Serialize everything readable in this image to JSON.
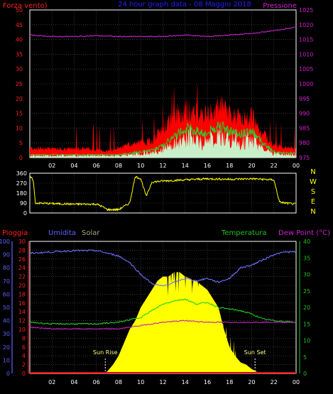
{
  "header": {
    "title": "24 hour graph data - 08 Maggio 2018",
    "left_label": "Forza vento)",
    "right_label": "Pressione"
  },
  "colors": {
    "background": "#000000",
    "grid": "#5a5a5a",
    "wind_gust": "#ff0000",
    "wind_avg": "#2ecc2e",
    "wind_fill": "#c8f0c8",
    "pressure": "#c020c0",
    "direction": "#ffff00",
    "humidity": "#7070ff",
    "temperature": "#22cc22",
    "dew_point": "#c020c0",
    "solar": "#ffff00",
    "rain": "#ff0000",
    "title": "#2020ff",
    "axis_red": "#ff2020",
    "axis_magenta": "#d020d0",
    "axis_yellow": "#ffff00",
    "axis_blue": "#6060ff",
    "axis_green": "#20c020",
    "compass": "#ffff00",
    "daylight": "#ffffff",
    "solar_label": "#a8a880"
  },
  "chart_data": [
    {
      "type": "line",
      "panel": "wind-pressure",
      "x_ticks": [
        "02",
        "04",
        "06",
        "08",
        "10",
        "12",
        "14",
        "16",
        "18",
        "20",
        "22",
        "00"
      ],
      "x_range": [
        0,
        24
      ],
      "left_axis": {
        "label": "Forza vento)",
        "ylim": [
          0,
          50
        ],
        "ticks": [
          0,
          5,
          10,
          15,
          20,
          25,
          30,
          35,
          40,
          45,
          50
        ]
      },
      "right_axis": {
        "label": "Pressione",
        "ylim": [
          975,
          1025
        ],
        "ticks": [
          975,
          980,
          985,
          990,
          995,
          1000,
          1005,
          1010,
          1015,
          1020,
          1025
        ]
      },
      "gust_profile": [
        [
          0,
          3
        ],
        [
          1,
          3
        ],
        [
          2,
          3
        ],
        [
          3,
          2.5
        ],
        [
          4,
          3
        ],
        [
          5,
          3
        ],
        [
          6,
          2.5
        ],
        [
          7,
          2
        ],
        [
          8,
          3
        ],
        [
          9,
          4
        ],
        [
          10,
          5
        ],
        [
          11,
          5
        ],
        [
          12,
          9
        ],
        [
          13,
          13
        ],
        [
          14,
          15
        ],
        [
          15,
          14
        ],
        [
          16,
          13
        ],
        [
          17,
          16
        ],
        [
          18,
          14
        ],
        [
          19,
          12
        ],
        [
          20,
          13
        ],
        [
          21,
          8
        ],
        [
          22,
          4
        ],
        [
          23,
          3
        ],
        [
          24,
          3
        ]
      ],
      "avg_profile": [
        [
          0,
          1
        ],
        [
          2,
          1
        ],
        [
          4,
          1
        ],
        [
          6,
          1
        ],
        [
          8,
          1
        ],
        [
          10,
          2
        ],
        [
          11,
          2.5
        ],
        [
          12,
          4
        ],
        [
          13,
          7
        ],
        [
          14,
          10
        ],
        [
          15,
          9
        ],
        [
          16,
          8
        ],
        [
          17,
          11
        ],
        [
          18,
          9
        ],
        [
          19,
          8
        ],
        [
          20,
          9
        ],
        [
          21,
          5
        ],
        [
          22,
          2
        ],
        [
          23,
          1.5
        ],
        [
          24,
          1.5
        ]
      ],
      "pressure_profile": [
        [
          0,
          1016.5
        ],
        [
          2,
          1016
        ],
        [
          4,
          1016
        ],
        [
          6,
          1016.3
        ],
        [
          8,
          1016
        ],
        [
          10,
          1016
        ],
        [
          12,
          1016
        ],
        [
          14,
          1016.5
        ],
        [
          16,
          1016
        ],
        [
          18,
          1016.5
        ],
        [
          20,
          1017
        ],
        [
          22,
          1018
        ],
        [
          24,
          1019.2
        ]
      ]
    },
    {
      "type": "scatter",
      "panel": "wind-direction",
      "x_range": [
        0,
        24
      ],
      "ylim": [
        0,
        360
      ],
      "ticks": [
        0,
        90,
        180,
        270,
        360
      ],
      "compass": [
        "N",
        "W",
        "S",
        "E",
        "N"
      ],
      "direction_profile": [
        [
          0,
          330
        ],
        [
          0.3,
          300
        ],
        [
          0.5,
          90
        ],
        [
          2,
          85
        ],
        [
          4,
          80
        ],
        [
          6,
          80
        ],
        [
          6.5,
          60
        ],
        [
          7,
          30
        ],
        [
          8,
          30
        ],
        [
          8.5,
          60
        ],
        [
          9,
          90
        ],
        [
          9.5,
          330
        ],
        [
          10,
          310
        ],
        [
          10.5,
          150
        ],
        [
          11,
          280
        ],
        [
          12,
          290
        ],
        [
          14,
          300
        ],
        [
          16,
          310
        ],
        [
          18,
          305
        ],
        [
          20,
          310
        ],
        [
          22,
          300
        ],
        [
          22.5,
          100
        ],
        [
          23,
          90
        ],
        [
          24,
          80
        ]
      ]
    },
    {
      "type": "line",
      "panel": "temperature-humidity-solar",
      "x_ticks": [
        "02",
        "04",
        "06",
        "08",
        "10",
        "12",
        "14",
        "16",
        "18",
        "20",
        "22",
        "00"
      ],
      "x_range": [
        0,
        24
      ],
      "series": [
        {
          "name": "Umidita",
          "axis": "humidity",
          "profile": [
            [
              0,
              91
            ],
            [
              2,
              92
            ],
            [
              4,
              93
            ],
            [
              6,
              93
            ],
            [
              7,
              91
            ],
            [
              8,
              89
            ],
            [
              9,
              84
            ],
            [
              10,
              75
            ],
            [
              11,
              68
            ],
            [
              12,
              66
            ],
            [
              13,
              69
            ],
            [
              14,
              72
            ],
            [
              15,
              70
            ],
            [
              16,
              72
            ],
            [
              17,
              69
            ],
            [
              18,
              72
            ],
            [
              19,
              80
            ],
            [
              20,
              82
            ],
            [
              21,
              86
            ],
            [
              22,
              90
            ],
            [
              23,
              92
            ],
            [
              24,
              92
            ]
          ]
        },
        {
          "name": "Temperatura",
          "axis": "temperature",
          "profile": [
            [
              0,
              15.5
            ],
            [
              2,
              15
            ],
            [
              4,
              15
            ],
            [
              6,
              15
            ],
            [
              8,
              15.5
            ],
            [
              10,
              17
            ],
            [
              11,
              19
            ],
            [
              12,
              21
            ],
            [
              13,
              22
            ],
            [
              14,
              22.5
            ],
            [
              15,
              21
            ],
            [
              16,
              21.5
            ],
            [
              17,
              20
            ],
            [
              18,
              19.5
            ],
            [
              19,
              19
            ],
            [
              20,
              18
            ],
            [
              21,
              16.5
            ],
            [
              22,
              16
            ],
            [
              24,
              15.5
            ]
          ]
        },
        {
          "name": "Dew Point (°C)",
          "axis": "temperature",
          "profile": [
            [
              0,
              14
            ],
            [
              2,
              13.5
            ],
            [
              4,
              13.5
            ],
            [
              6,
              13.5
            ],
            [
              8,
              13.5
            ],
            [
              10,
              14.5
            ],
            [
              12,
              15.5
            ],
            [
              14,
              16
            ],
            [
              16,
              15.5
            ],
            [
              18,
              15.5
            ],
            [
              20,
              15.5
            ],
            [
              22,
              15.5
            ],
            [
              24,
              15.5
            ]
          ]
        },
        {
          "name": "Solar",
          "axis": "solar",
          "profile": [
            [
              6.7,
              0
            ],
            [
              7,
              0.5
            ],
            [
              7.5,
              2
            ],
            [
              8,
              4
            ],
            [
              8.5,
              7
            ],
            [
              9,
              10
            ],
            [
              9.5,
              12
            ],
            [
              10,
              15
            ],
            [
              10.5,
              17
            ],
            [
              11,
              19
            ],
            [
              11.5,
              21
            ],
            [
              12,
              22
            ],
            [
              12.5,
              22
            ],
            [
              13,
              23
            ],
            [
              13.5,
              23
            ],
            [
              14,
              22
            ],
            [
              14.5,
              21.5
            ],
            [
              15,
              21
            ],
            [
              16,
              19
            ],
            [
              16.5,
              17
            ],
            [
              17,
              15
            ],
            [
              17.5,
              10
            ],
            [
              18,
              6
            ],
            [
              18.5,
              4
            ],
            [
              19,
              2.5
            ],
            [
              19.5,
              2
            ],
            [
              20,
              1
            ],
            [
              20.5,
              0.3
            ],
            [
              21,
              0
            ]
          ]
        },
        {
          "name": "Pioggia",
          "axis": "rain",
          "profile": [
            [
              0,
              0
            ],
            [
              24,
              0
            ]
          ]
        }
      ],
      "axes": {
        "humidity": {
          "label": "Umidita",
          "ylim": [
            0,
            100
          ],
          "ticks": [
            0,
            10,
            20,
            30,
            40,
            50,
            60,
            70,
            80,
            90,
            100
          ]
        },
        "rain": {
          "label": "Pioggia",
          "ylim": [
            0,
            30
          ],
          "ticks": [
            0,
            2,
            4,
            6,
            8,
            10,
            12,
            14,
            16,
            18,
            20,
            22,
            24,
            26,
            28,
            30
          ]
        },
        "temperature": {
          "label": "Dew Point (°C)",
          "ylim": [
            0,
            40
          ],
          "ticks": [
            0,
            5,
            10,
            15,
            20,
            25,
            30,
            35,
            40
          ]
        },
        "solar": {
          "label": "Solar",
          "ylim": [
            0,
            30
          ]
        }
      },
      "legend": {
        "rain": "Pioggia",
        "humidity": "Umidita",
        "solar": "Solar",
        "temperature": "Temperatura",
        "dew_point": "Dew Point (°C)"
      },
      "annotations": [
        {
          "text": "Sun Rise",
          "x": 6.8
        },
        {
          "text": "Sun Set",
          "x": 20.3
        }
      ]
    }
  ]
}
